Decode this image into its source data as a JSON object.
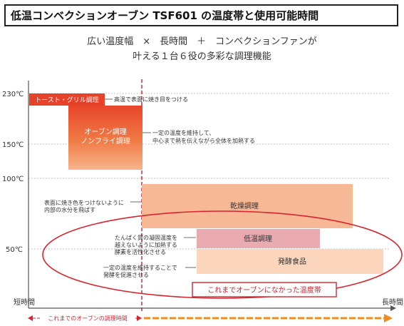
{
  "title": "低温コンベクションオーブン TSF601 の温度帯と使用可能時間",
  "subtitle_line1": "広い温度幅　×　長時間　＋　コンベクションファンが",
  "subtitle_line2": "叶える１台６役の多彩な調理機能",
  "axis": {
    "y_ticks": [
      "230℃",
      "150℃",
      "100℃",
      "50℃"
    ],
    "x_start_label": "短時間",
    "x_end_label": "長時間",
    "conventional_time_label": "これまでのオーブンの調理時間"
  },
  "modes": [
    {
      "name": "トースト・グリル調理",
      "note_lines": [
        "高温で表面に焼き目をつける"
      ],
      "color": "#e8412a"
    },
    {
      "name_lines": [
        "オーブン調理",
        "ノンフライ調理"
      ],
      "note_lines": [
        "一定の温度を維持して、",
        "中心まで熱を伝えながら全体を加熱する"
      ],
      "color": "#ee6a3a"
    },
    {
      "name": "乾燥調理",
      "note_lines": [
        "表面に焼き色をつけないように",
        "内部の水分を飛ばす"
      ],
      "color": "#f7b896"
    },
    {
      "name": "低温調理",
      "note_lines": [
        "たんぱく質の凝固温度を",
        "越えないように加熱する",
        "酵素を活性化させる"
      ],
      "color": "#e9aab0"
    },
    {
      "name": "発酵食品",
      "note_lines": [
        "一定の温度を維持することで",
        "発酵を促進させる"
      ],
      "color": "#fbd6bd"
    }
  ],
  "highlight_label": "これまでオーブンになかった温度帯",
  "colors": {
    "accent_red": "#d9232d",
    "arrow_orange": "#f28b1e"
  }
}
